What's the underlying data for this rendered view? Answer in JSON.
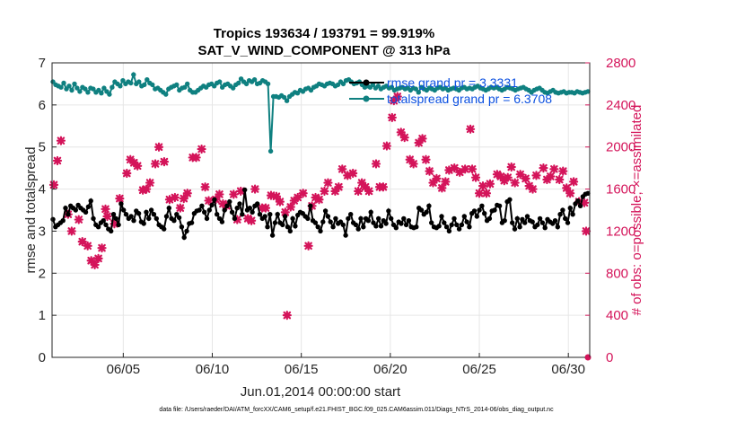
{
  "chart_data": {
    "type": "line",
    "title_line1": "Tropics 193634 / 193791 = 99.919%",
    "title_line2": "SAT_V_WIND_COMPONENT @ 313 hPa",
    "xlabel": "Jun.01,2014 00:00:00 start",
    "ylabel_left": "rmse and totalspread",
    "ylabel_right": "# of obs: o=possible; ×=assimilated",
    "footer": "data file: /Users/raeder/DAI/ATM_forcXX/CAM6_setup/f.e21.FHIST_BGC.f09_025.CAM6assim.011/Diags_NTrS_2014-06/obs_diag_output.nc",
    "xlim": [
      1,
      31.2
    ],
    "ylim_left": [
      0,
      7
    ],
    "ylim_right": [
      0,
      2800
    ],
    "x_ticks": [
      5,
      10,
      15,
      20,
      25,
      30
    ],
    "x_tick_labels": [
      "06/05",
      "06/10",
      "06/15",
      "06/20",
      "06/25",
      "06/30"
    ],
    "y_left_ticks": [
      "0",
      "1",
      "2",
      "3",
      "4",
      "5",
      "6",
      "7"
    ],
    "y_right_ticks": [
      "0",
      "400",
      "800",
      "1200",
      "1600",
      "2000",
      "2400",
      "2800"
    ],
    "colors": {
      "rmse": "#000000",
      "spread": "#0f8080",
      "obs": "#d4145a",
      "legend_text": "#0a4fe0",
      "grid": "#e6e6e6"
    },
    "series": [
      {
        "name": "rmse grand pr = 3.3331",
        "axis": "left",
        "color": "#000000",
        "values": [
          3.28,
          3.1,
          3.15,
          3.2,
          3.25,
          3.55,
          3.4,
          3.6,
          3.55,
          3.5,
          3.62,
          3.55,
          3.5,
          3.45,
          3.58,
          3.72,
          3.3,
          3.15,
          3.1,
          3.2,
          3.25,
          3.15,
          3.05,
          3.0,
          3.4,
          3.3,
          3.15,
          3.65,
          3.5,
          3.4,
          3.3,
          3.35,
          3.25,
          3.48,
          3.42,
          3.22,
          3.18,
          3.45,
          3.3,
          3.5,
          3.4,
          3.3,
          3.15,
          3.1,
          3.05,
          3.35,
          3.55,
          3.3,
          3.25,
          3.4,
          3.32,
          3.1,
          2.85,
          3.0,
          3.18,
          3.2,
          3.42,
          3.48,
          3.5,
          3.6,
          3.45,
          3.3,
          3.5,
          3.62,
          3.75,
          3.4,
          3.3,
          3.22,
          3.5,
          3.6,
          3.7,
          3.45,
          3.3,
          3.55,
          3.65,
          3.4,
          3.98,
          3.5,
          3.55,
          3.45,
          3.6,
          3.65,
          3.4,
          3.3,
          3.35,
          3.1,
          3.4,
          2.9,
          3.2,
          3.4,
          3.2,
          3.15,
          3.35,
          3.1,
          3.0,
          3.3,
          3.12,
          3.38,
          3.45,
          3.42,
          3.35,
          3.3,
          3.6,
          3.25,
          3.2,
          3.1,
          3.0,
          3.22,
          3.48,
          3.35,
          3.22,
          3.1,
          3.3,
          3.18,
          3.22,
          3.15,
          2.9,
          3.3,
          3.4,
          3.2,
          3.15,
          3.05,
          3.3,
          3.1,
          3.3,
          3.25,
          3.45,
          3.2,
          3.12,
          3.3,
          3.12,
          3.25,
          3.18,
          3.48,
          3.3,
          3.15,
          3.08,
          3.22,
          3.18,
          3.3,
          3.15,
          3.25,
          3.1,
          3.08,
          3.1,
          3.55,
          3.5,
          3.4,
          3.45,
          3.6,
          3.2,
          3.1,
          3.08,
          3.12,
          3.35,
          3.2,
          3.1,
          3.0,
          3.15,
          3.3,
          3.15,
          3.05,
          3.15,
          3.35,
          3.22,
          3.1,
          3.42,
          3.48,
          3.35,
          3.5,
          3.6,
          3.42,
          3.25,
          3.3,
          3.48,
          3.5,
          3.62,
          3.6,
          3.2,
          3.25,
          3.7,
          3.75,
          3.2,
          3.05,
          3.3,
          3.1,
          3.28,
          3.2,
          3.35,
          3.25,
          3.22,
          3.1,
          3.15,
          3.3,
          3.2,
          3.08,
          3.28,
          3.22,
          3.18,
          3.25,
          3.1,
          3.4,
          3.5,
          3.3,
          3.2,
          3.55,
          3.4,
          3.65,
          3.72,
          3.6,
          3.82,
          3.88,
          3.9
        ]
      },
      {
        "name": "totalspread grand pr = 6.3708",
        "axis": "left",
        "color": "#0f8080",
        "values": [
          6.55,
          6.48,
          6.45,
          6.42,
          6.52,
          6.38,
          6.45,
          6.35,
          6.5,
          6.4,
          6.32,
          6.42,
          6.38,
          6.3,
          6.4,
          6.38,
          6.3,
          6.35,
          6.28,
          6.4,
          6.32,
          6.25,
          6.42,
          6.55,
          6.5,
          6.45,
          6.58,
          6.5,
          6.55,
          6.52,
          6.72,
          6.5,
          6.55,
          6.45,
          6.48,
          6.6,
          6.52,
          6.48,
          6.38,
          6.4,
          6.35,
          6.3,
          6.25,
          6.38,
          6.42,
          6.45,
          6.48,
          6.35,
          6.4,
          6.42,
          6.5,
          6.35,
          6.3,
          6.3,
          6.35,
          6.4,
          6.45,
          6.42,
          6.48,
          6.5,
          6.45,
          6.52,
          6.55,
          6.42,
          6.48,
          6.5,
          6.45,
          6.4,
          6.48,
          6.52,
          6.62,
          6.55,
          6.5,
          6.58,
          6.55,
          6.6,
          6.5,
          6.52,
          6.58,
          6.55,
          6.5,
          4.9,
          6.2,
          6.2,
          6.18,
          6.22,
          6.18,
          6.1,
          6.2,
          6.25,
          6.3,
          6.28,
          6.35,
          6.32,
          6.38,
          6.4,
          6.35,
          6.42,
          6.45,
          6.5,
          6.48,
          6.45,
          6.5,
          6.52,
          6.5,
          6.45,
          6.48,
          6.55,
          6.5,
          6.58,
          6.6,
          6.55,
          6.5,
          6.52,
          6.55,
          6.48,
          6.42,
          6.45,
          6.42,
          6.48,
          6.4,
          6.45,
          6.38,
          6.42,
          6.45,
          6.4,
          6.42,
          6.35,
          6.38,
          6.4,
          6.42,
          6.38,
          6.4,
          6.35,
          6.4,
          6.38,
          6.3,
          6.42,
          6.38,
          6.35,
          6.4,
          6.38,
          6.35,
          6.4,
          6.42,
          6.38,
          6.4,
          6.35,
          6.38,
          6.4,
          6.38,
          6.35,
          6.4,
          6.42,
          6.38,
          6.4,
          6.38,
          6.42,
          6.45,
          6.4,
          6.38,
          6.35,
          6.38,
          6.42,
          6.4,
          6.42,
          6.38,
          6.35,
          6.38,
          6.42,
          6.4,
          6.38,
          6.35,
          6.38,
          6.4,
          6.42,
          6.38,
          6.35,
          6.3,
          6.35,
          6.38,
          6.4,
          6.35,
          6.3,
          6.28,
          6.32,
          6.35,
          6.3,
          6.28,
          6.3,
          6.32,
          6.28,
          6.3,
          6.3,
          6.28,
          6.32,
          6.3,
          6.28,
          6.3,
          6.32
        ]
      },
      {
        "name": "# of obs assimilated",
        "axis": "right",
        "color": "#d4145a",
        "marker": "x",
        "x": [
          1.1,
          1.3,
          1.5,
          1.9,
          2.1,
          2.5,
          2.7,
          3.0,
          3.2,
          3.4,
          3.6,
          3.8,
          4.0,
          4.1,
          4.5,
          4.8,
          5.2,
          5.4,
          5.6,
          5.8,
          6.1,
          6.3,
          6.5,
          6.8,
          7.0,
          7.3,
          7.6,
          7.9,
          8.2,
          8.4,
          8.6,
          8.9,
          9.1,
          9.4,
          9.6,
          9.8,
          10.2,
          10.4,
          10.6,
          10.8,
          11.2,
          11.4,
          11.6,
          12.0,
          12.2,
          12.4,
          12.8,
          13.0,
          13.3,
          13.6,
          13.8,
          14.1,
          14.2,
          14.4,
          14.6,
          14.8,
          15.1,
          15.4,
          15.6,
          15.8,
          16.0,
          16.3,
          16.5,
          16.9,
          17.1,
          17.3,
          17.6,
          17.9,
          18.2,
          18.4,
          18.6,
          18.8,
          19.2,
          19.4,
          19.6,
          19.8,
          20.1,
          20.2,
          20.4,
          20.6,
          20.8,
          21.1,
          21.3,
          21.6,
          21.8,
          22.0,
          22.2,
          22.4,
          22.6,
          22.9,
          23.1,
          23.3,
          23.6,
          23.9,
          24.2,
          24.5,
          24.6,
          24.8,
          25.0,
          25.2,
          25.4,
          25.6,
          26.0,
          26.2,
          26.4,
          26.6,
          26.8,
          27.0,
          27.3,
          27.6,
          27.8,
          28.0,
          28.2,
          28.6,
          28.8,
          29.0,
          29.2,
          29.5,
          29.7,
          29.9,
          30.1,
          30.3,
          30.6,
          30.9,
          31.0
        ],
        "values": [
          1640,
          1870,
          2060,
          1360,
          1200,
          1310,
          1100,
          1060,
          920,
          880,
          940,
          1040,
          1410,
          1340,
          1270,
          1510,
          1750,
          1880,
          1850,
          1820,
          1590,
          1600,
          1660,
          1840,
          2000,
          1860,
          1500,
          1520,
          1420,
          1510,
          1560,
          1900,
          1900,
          1980,
          1620,
          1490,
          1500,
          1550,
          1460,
          1440,
          1550,
          1310,
          1580,
          1320,
          1300,
          1600,
          1420,
          1420,
          1540,
          1530,
          1480,
          1380,
          400,
          1430,
          1490,
          1520,
          1560,
          1060,
          1440,
          1520,
          1500,
          1580,
          1660,
          1580,
          1620,
          1790,
          1730,
          1750,
          1580,
          1660,
          1620,
          1580,
          1840,
          1620,
          1620,
          2010,
          2280,
          2440,
          2480,
          2140,
          2090,
          1880,
          1840,
          2040,
          2080,
          1880,
          1770,
          1660,
          1700,
          1610,
          1670,
          1780,
          1800,
          1760,
          1790,
          2170,
          1790,
          1710,
          1560,
          1630,
          1560,
          1650,
          1740,
          1720,
          1680,
          1710,
          1810,
          1660,
          1740,
          1700,
          1630,
          1600,
          1730,
          1800,
          1690,
          1720,
          1790,
          1690,
          1770,
          1610,
          1560,
          1670,
          1480,
          1470,
          1200
        ]
      }
    ],
    "legend": [
      "rmse grand pr = 3.3331",
      "totalspread grand pr = 6.3708"
    ]
  }
}
